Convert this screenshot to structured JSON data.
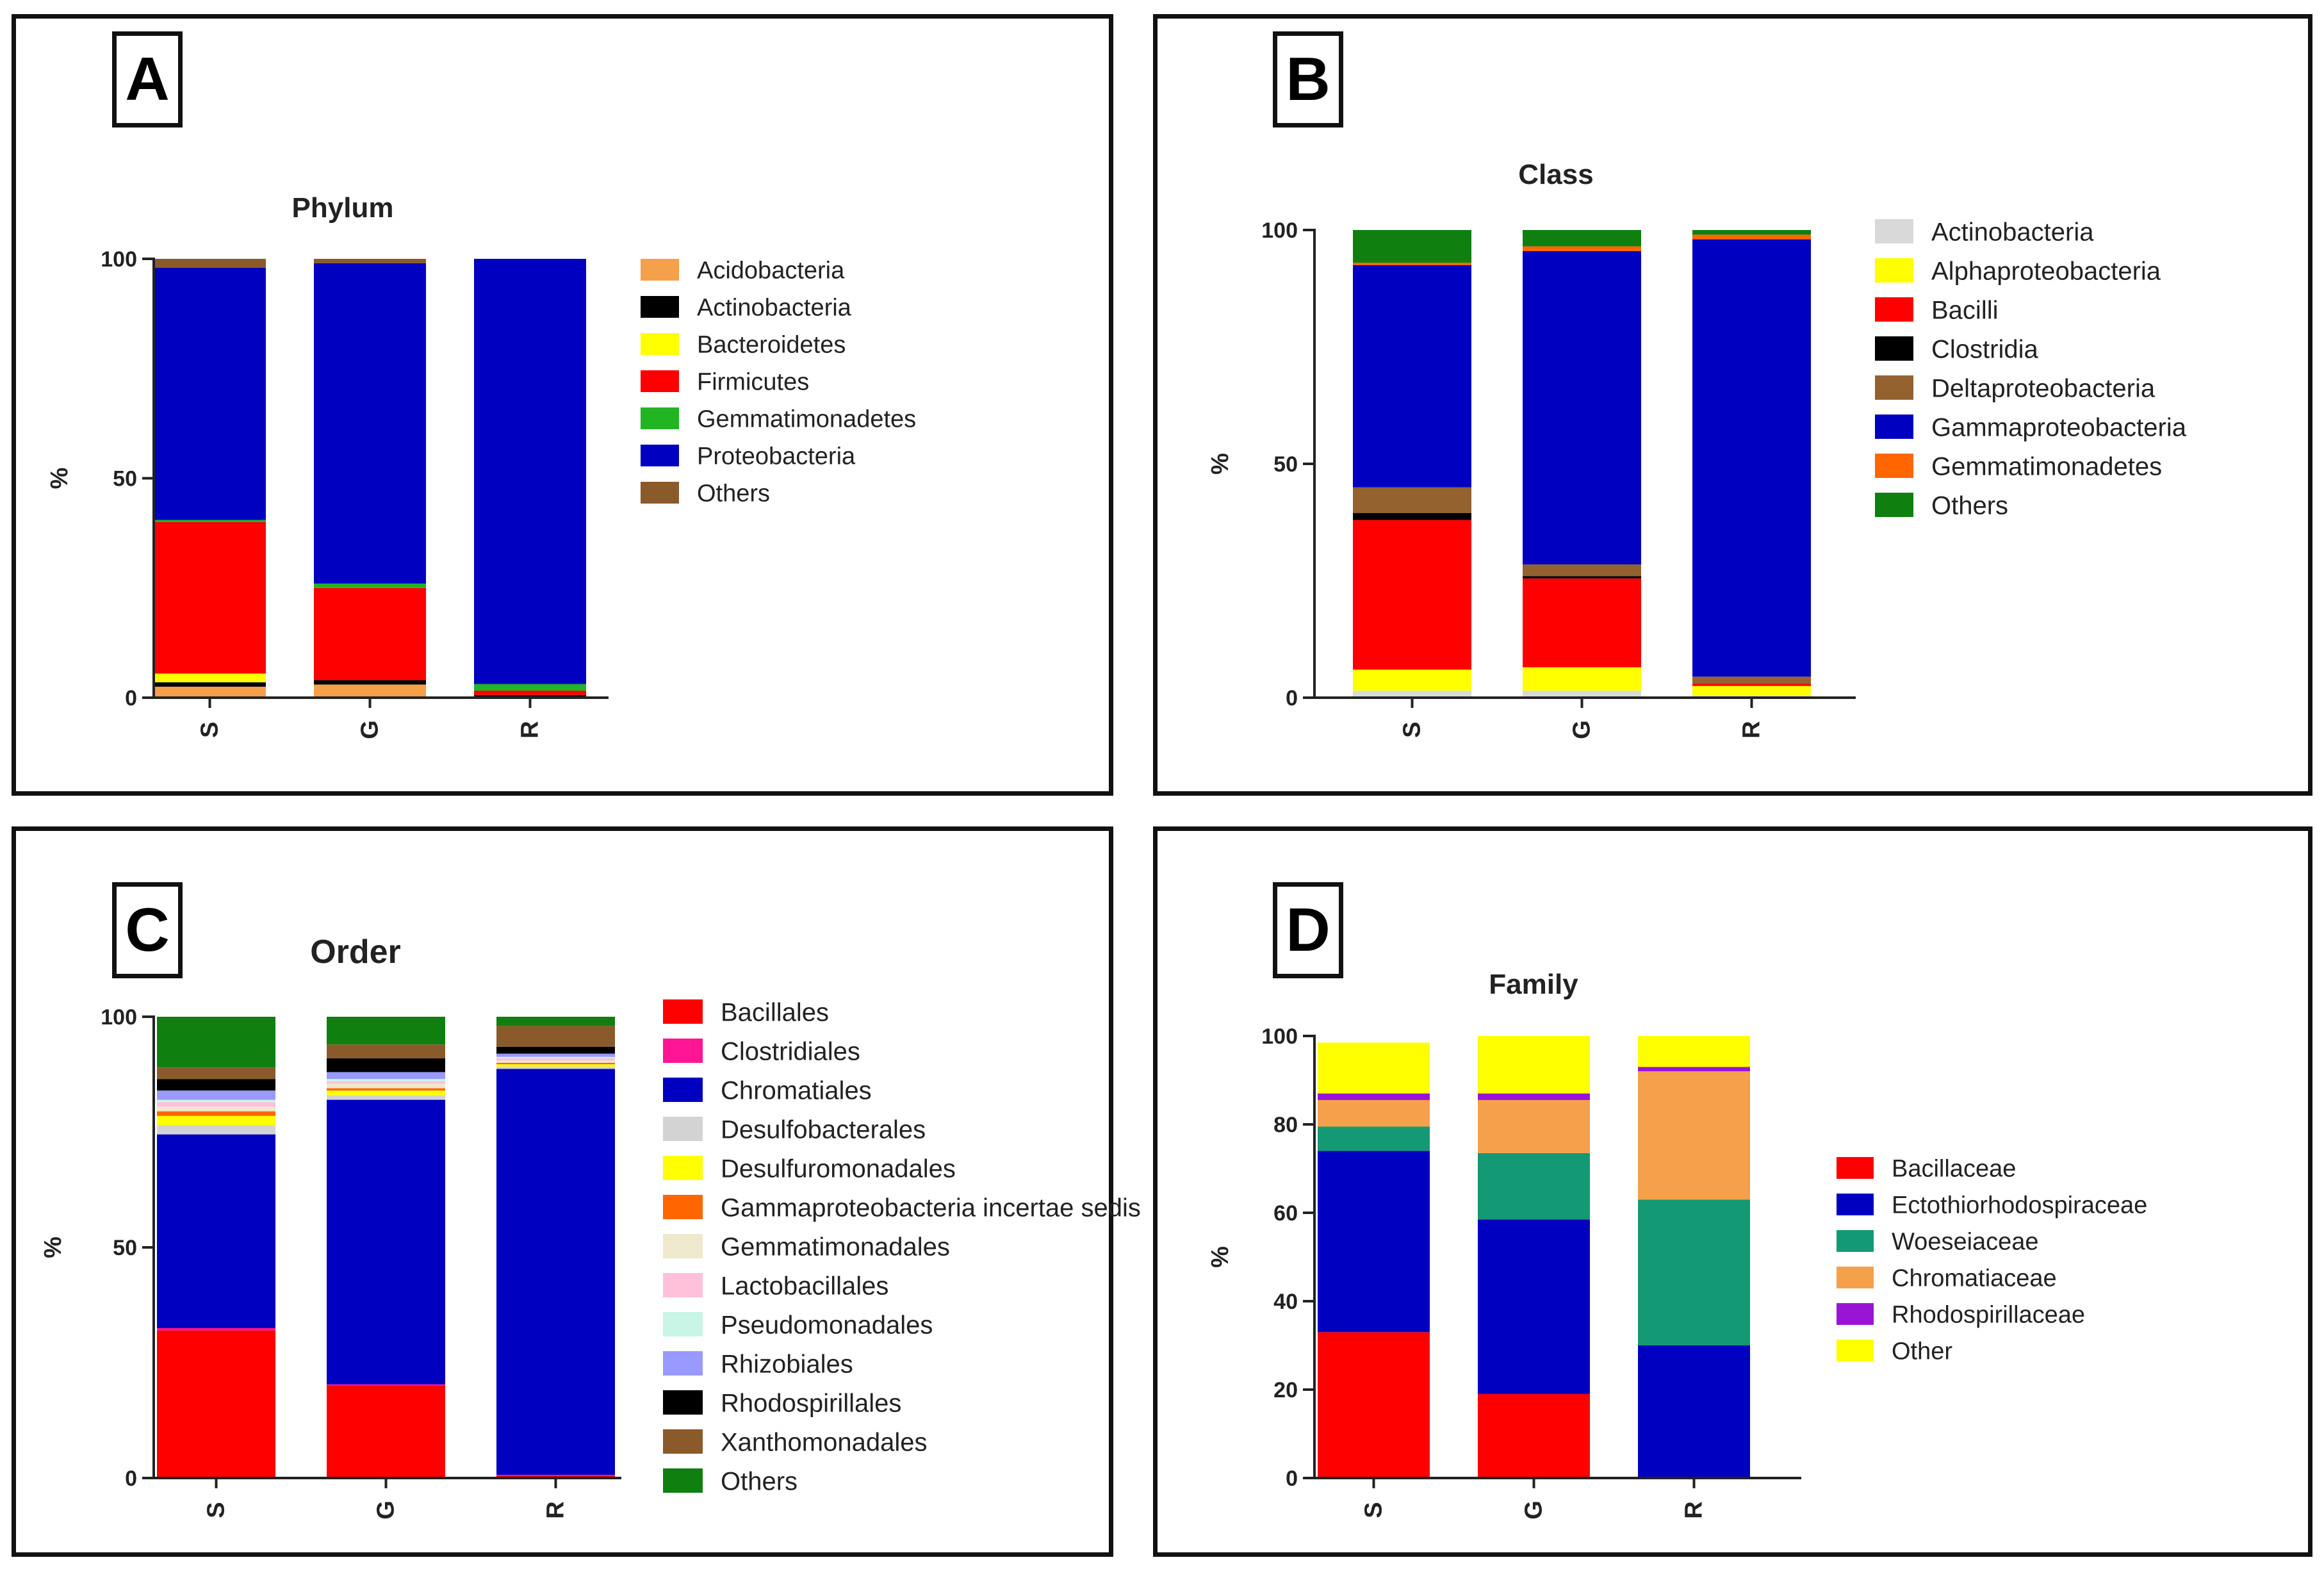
{
  "panels": [
    {
      "letter": "A"
    },
    {
      "letter": "B"
    },
    {
      "letter": "C"
    },
    {
      "letter": "D"
    }
  ],
  "chart_data": [
    {
      "panel": "A",
      "type": "bar",
      "stacked": true,
      "title": "Phylum",
      "xlabel": "",
      "ylabel": "%",
      "ylim": [
        0,
        100
      ],
      "yticks": [
        0,
        50,
        100
      ],
      "categories": [
        "S",
        "G",
        "R"
      ],
      "series": [
        {
          "name": "Acidobacteria",
          "color": "#F5A04A",
          "values": [
            2.5,
            3,
            0.3
          ]
        },
        {
          "name": "Actinobacteria",
          "color": "#000000",
          "values": [
            1,
            1,
            0.3
          ]
        },
        {
          "name": "Bacteroidetes",
          "color": "#FFFF00",
          "values": [
            2,
            0,
            0
          ]
        },
        {
          "name": "Firmicutes",
          "color": "#FF0000",
          "values": [
            34.5,
            21,
            1
          ]
        },
        {
          "name": "Gemmatimonadetes",
          "color": "#22B522",
          "values": [
            0.5,
            1,
            1.5
          ]
        },
        {
          "name": "Proteobacteria",
          "color": "#0000C0",
          "values": [
            57.5,
            73,
            96.9
          ]
        },
        {
          "name": "Others",
          "color": "#8B5A2B",
          "values": [
            2,
            1,
            0
          ]
        }
      ]
    },
    {
      "panel": "B",
      "type": "bar",
      "stacked": true,
      "title": "Class",
      "xlabel": "",
      "ylabel": "%",
      "ylim": [
        0,
        100
      ],
      "yticks": [
        0,
        50,
        100
      ],
      "categories": [
        "S",
        "G",
        "R"
      ],
      "series": [
        {
          "name": "Actinobacteria",
          "color": "#D9D9D9",
          "values": [
            1.5,
            1.5,
            0.5
          ]
        },
        {
          "name": "Alphaproteobacteria",
          "color": "#FFFF00",
          "values": [
            4.5,
            5,
            2
          ]
        },
        {
          "name": "Bacilli",
          "color": "#FF0000",
          "values": [
            32,
            19,
            0.5
          ]
        },
        {
          "name": "Clostridia",
          "color": "#000000",
          "values": [
            1.5,
            0.5,
            0
          ]
        },
        {
          "name": "Deltaproteobacteria",
          "color": "#94622E",
          "values": [
            5.5,
            2.5,
            1.5
          ]
        },
        {
          "name": "Gammaproteobacteria",
          "color": "#0000C0",
          "values": [
            47.5,
            67,
            93.5
          ]
        },
        {
          "name": "Gemmatimonadetes",
          "color": "#FF6600",
          "values": [
            0.5,
            1,
            1
          ]
        },
        {
          "name": "Others",
          "color": "#0F800F",
          "values": [
            7,
            3.5,
            1
          ]
        }
      ]
    },
    {
      "panel": "C",
      "type": "bar",
      "stacked": true,
      "title": "Order",
      "xlabel": "",
      "ylabel": "%",
      "ylim": [
        0,
        100
      ],
      "yticks": [
        0,
        50,
        100
      ],
      "categories": [
        "S",
        "G",
        "R"
      ],
      "series": [
        {
          "name": "Bacillales",
          "color": "#FF0000",
          "values": [
            32,
            20,
            0.5
          ]
        },
        {
          "name": "Clostridiales",
          "color": "#FF1493",
          "values": [
            0.5,
            0.3,
            0.2
          ]
        },
        {
          "name": "Chromatiales",
          "color": "#0000C0",
          "values": [
            42,
            61.7,
            88
          ]
        },
        {
          "name": "Desulfobacterales",
          "color": "#D3D3D3",
          "values": [
            2,
            1,
            0.5
          ]
        },
        {
          "name": "Desulfuromonadales",
          "color": "#FFFF00",
          "values": [
            2,
            1,
            0.5
          ]
        },
        {
          "name": "Gammaproteobacteria incertae sedis",
          "color": "#FF6600",
          "values": [
            1,
            0.5,
            0.3
          ]
        },
        {
          "name": "Gemmatimonadales",
          "color": "#EEE8CC",
          "values": [
            1,
            1,
            0.5
          ]
        },
        {
          "name": "Lactobacillales",
          "color": "#FFC0DA",
          "values": [
            1,
            0.5,
            0.5
          ]
        },
        {
          "name": "Pseudomonadales",
          "color": "#C8F5E5",
          "values": [
            0.5,
            0.5,
            0.3
          ]
        },
        {
          "name": "Rhizobiales",
          "color": "#9999FF",
          "values": [
            2,
            1.5,
            0.7
          ]
        },
        {
          "name": "Rhodospirillales",
          "color": "#000000",
          "values": [
            2.5,
            3,
            1.5
          ]
        },
        {
          "name": "Xanthomonadales",
          "color": "#8B5A2B",
          "values": [
            2.5,
            3,
            4.5
          ]
        },
        {
          "name": "Others",
          "color": "#0F800F",
          "values": [
            11,
            6,
            2
          ]
        }
      ]
    },
    {
      "panel": "D",
      "type": "bar",
      "stacked": true,
      "title": "Family",
      "xlabel": "",
      "ylabel": "%",
      "ylim": [
        0,
        100
      ],
      "yticks": [
        0,
        20,
        40,
        60,
        80,
        100
      ],
      "categories": [
        "S",
        "G",
        "R"
      ],
      "series": [
        {
          "name": "Bacillaceae",
          "color": "#FF0000",
          "values": [
            33,
            19,
            0
          ]
        },
        {
          "name": "Ectothiorhodospiraceae",
          "color": "#0000C0",
          "values": [
            41,
            39.5,
            30
          ]
        },
        {
          "name": "Woeseiaceae",
          "color": "#139973",
          "values": [
            5.5,
            15,
            33
          ]
        },
        {
          "name": "Chromatiaceae",
          "color": "#F5A04A",
          "values": [
            6,
            12,
            29
          ]
        },
        {
          "name": "Rhodospirillaceae",
          "color": "#9A14D6",
          "values": [
            1.5,
            1.5,
            1
          ]
        },
        {
          "name": "Other",
          "color": "#FFFF00",
          "values": [
            11.5,
            13,
            7
          ]
        }
      ]
    }
  ]
}
